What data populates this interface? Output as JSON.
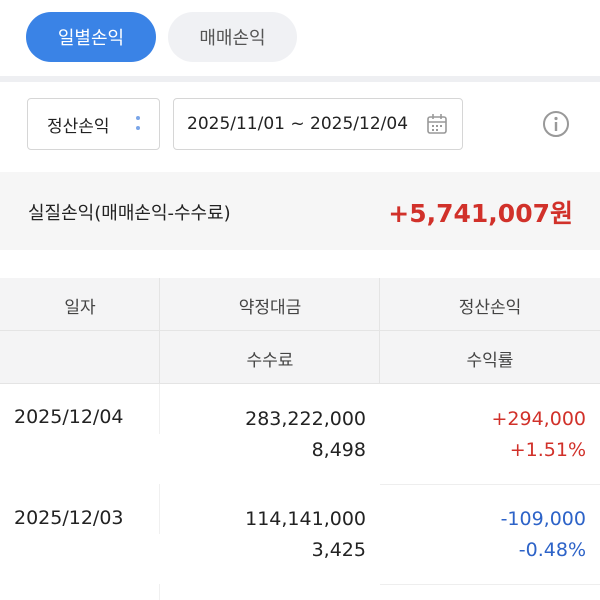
{
  "tabs": [
    "일별손익",
    "매매손익"
  ],
  "filter": {
    "select": "정산손익",
    "date_range": "2025/11/01 ~ 2025/12/04"
  },
  "summary": {
    "label": "실질손익(매매손익-수수료)",
    "value": "+5,741,007원"
  },
  "table": {
    "headers": [
      [
        "일자",
        "약정대금",
        "정산손익"
      ],
      [
        "수수료",
        "수익률"
      ]
    ],
    "rows": [
      [
        "2025/12/04",
        "283,222,000",
        "8,498",
        "+294,000",
        "+1.51%"
      ],
      [
        "2025/12/03",
        "114,141,000",
        "3,425",
        "-109,000",
        "-0.48%"
      ]
    ]
  }
}
